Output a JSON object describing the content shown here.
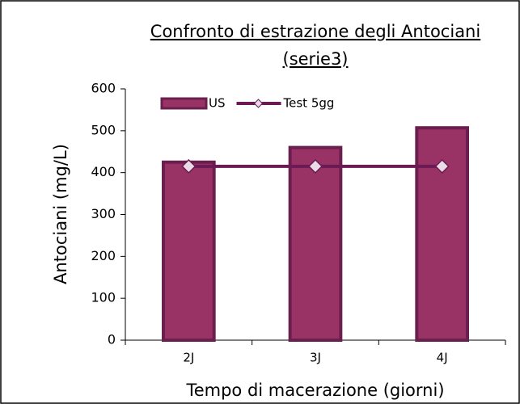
{
  "chart_data": {
    "type": "bar",
    "title": [
      "Confronto di estrazione degli Antociani",
      "(serie3)"
    ],
    "x_label": "Tempo di macerazione (giorni)",
    "y_label": "Antociani (mg/L)",
    "categories": [
      "2J",
      "3J",
      "4J"
    ],
    "series": [
      {
        "name": "US",
        "type": "bar",
        "color": "#993366",
        "values": [
          425,
          460,
          507
        ]
      },
      {
        "name": "Test 5gg",
        "type": "line",
        "color": "#6b1a55",
        "values": [
          415,
          415,
          415
        ]
      }
    ],
    "ylim": [
      0,
      600
    ],
    "yticks": [
      0,
      100,
      200,
      300,
      400,
      500,
      600
    ],
    "grid": false,
    "legend": "top-left"
  }
}
